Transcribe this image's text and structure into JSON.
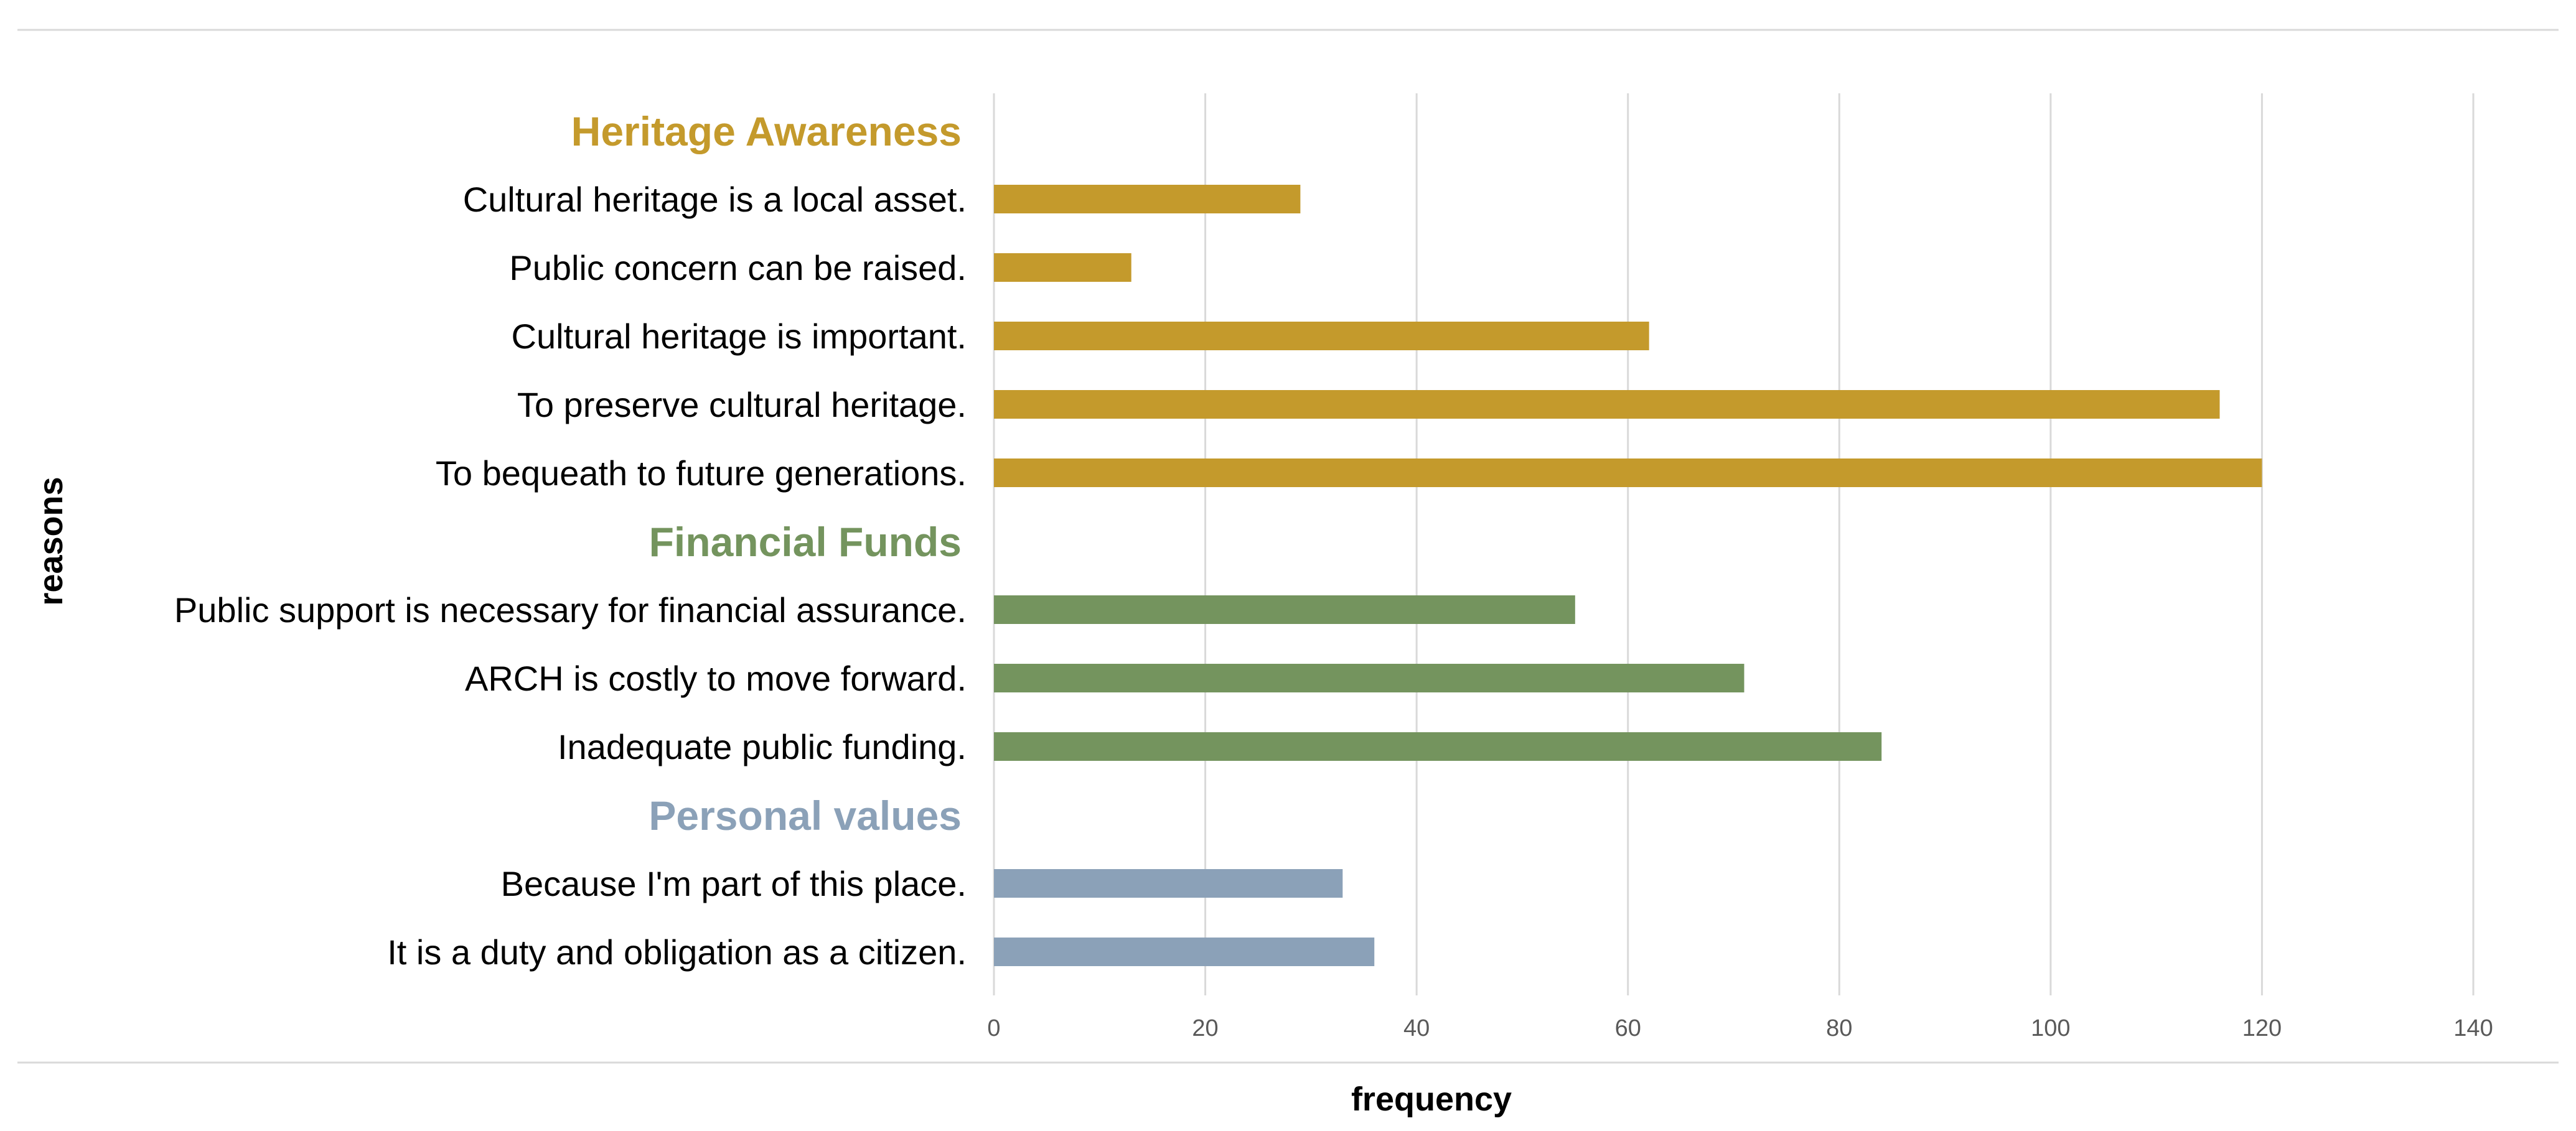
{
  "chart_data": {
    "type": "bar",
    "orientation": "horizontal",
    "xlabel": "frequency",
    "ylabel": "reasons",
    "xlim": [
      0,
      140
    ],
    "x_ticks": [
      0,
      20,
      40,
      60,
      80,
      100,
      120,
      140
    ],
    "grid": true,
    "groups": [
      {
        "name": "Heritage Awareness",
        "color": "#C49A2C",
        "categories": [
          "Cultural heritage is a local asset.",
          "Public concern can be raised.",
          "Cultural heritage is important.",
          "To preserve cultural heritage.",
          "To bequeath to future generations."
        ],
        "values": [
          29,
          13,
          62,
          116,
          120
        ]
      },
      {
        "name": "Financial Funds",
        "color": "#74945E",
        "categories": [
          "Public support is necessary for financial assurance.",
          "ARCH is costly to move forward.",
          "Inadequate public funding."
        ],
        "values": [
          55,
          71,
          84
        ]
      },
      {
        "name": "Personal values",
        "color": "#8BA1B8",
        "categories": [
          "Because I'm part of this place.",
          "It is a duty and obligation as a citizen."
        ],
        "values": [
          33,
          36
        ]
      }
    ]
  }
}
